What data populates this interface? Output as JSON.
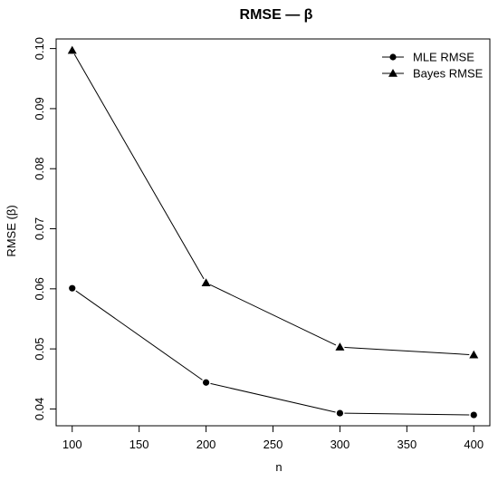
{
  "chart_data": {
    "type": "line",
    "title": "RMSE — β",
    "xlabel": "n",
    "ylabel": "RMSE (β)",
    "x": [
      100,
      200,
      300,
      400
    ],
    "xticks": [
      100,
      150,
      200,
      250,
      300,
      350,
      400
    ],
    "xtick_labels": [
      "100",
      "150",
      "200",
      "250",
      "300",
      "350",
      "400"
    ],
    "yticks": [
      0.04,
      0.05,
      0.06,
      0.07,
      0.08,
      0.09,
      0.1
    ],
    "ytick_labels": [
      "0.04",
      "0.05",
      "0.06",
      "0.07",
      "0.08",
      "0.09",
      "0.10"
    ],
    "xlim": [
      88,
      412
    ],
    "ylim": [
      0.0372,
      0.1016
    ],
    "grid": false,
    "legend_position": "top-right",
    "series": [
      {
        "name": "MLE RMSE",
        "marker": "circle",
        "values": [
          0.0601,
          0.0444,
          0.0393,
          0.039
        ]
      },
      {
        "name": "Bayes RMSE",
        "marker": "triangle",
        "values": [
          0.0997,
          0.061,
          0.0503,
          0.049
        ]
      }
    ],
    "colors": {
      "line": "#000000",
      "box": "#000000"
    }
  }
}
